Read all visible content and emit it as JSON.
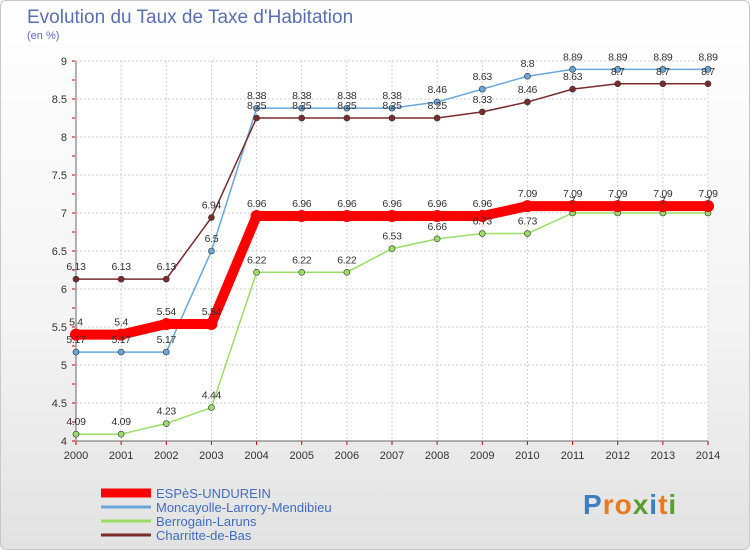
{
  "chart_data": {
    "type": "line",
    "title": "Evolution du Taux de Taxe d'Habitation",
    "subtitle": "(en %)",
    "x": [
      "2000",
      "2001",
      "2002",
      "2003",
      "2004",
      "2005",
      "2006",
      "2007",
      "2008",
      "2009",
      "2010",
      "2011",
      "2012",
      "2013",
      "2014"
    ],
    "ylim": [
      4,
      9
    ],
    "yticks": [
      "4",
      "4.5",
      "5",
      "5.5",
      "6",
      "6.5",
      "7",
      "7.5",
      "8",
      "8.5",
      "9"
    ],
    "grid": true,
    "legend_position": "bottom-left",
    "series": [
      {
        "name": "ESPèS-UNDUREIN",
        "color": "#ff0000",
        "values": [
          5.4,
          5.4,
          5.54,
          5.54,
          6.96,
          6.96,
          6.96,
          6.96,
          6.96,
          6.96,
          7.09,
          7.09,
          7.09,
          7.09,
          7.09
        ],
        "labels": [
          "5.4",
          "5.4",
          "5.54",
          "5.54",
          "6.96",
          "6.96",
          "6.96",
          "6.96",
          "6.96",
          "6.96",
          "7.09",
          "7.09",
          "7.09",
          "7.09",
          "7.09"
        ]
      },
      {
        "name": "Moncayolle-Larrory-Mendibieu",
        "color": "#6aa6d9",
        "values": [
          5.17,
          5.17,
          5.17,
          6.5,
          8.38,
          8.38,
          8.38,
          8.38,
          8.46,
          8.63,
          8.8,
          8.89,
          8.89,
          8.89,
          8.89
        ],
        "labels": [
          "5.17",
          "5.17",
          "5.17",
          "6.5",
          "8.38",
          "8.38",
          "8.38",
          "8.38",
          "8.46",
          "8.63",
          "8.8",
          "8.89",
          "8.89",
          "8.89",
          "8.89"
        ]
      },
      {
        "name": "Berrogain-Laruns",
        "color": "#99dd66",
        "values": [
          4.09,
          4.09,
          4.23,
          4.44,
          6.22,
          6.22,
          6.22,
          6.53,
          6.66,
          6.73,
          6.73,
          7.0,
          7.0,
          7.0,
          7.0
        ],
        "labels": [
          "4.09",
          "4.09",
          "4.23",
          "4.44",
          "6.22",
          "6.22",
          "6.22",
          "6.53",
          "6.66",
          "6.73",
          "6.73",
          "7",
          "7",
          "7",
          "7"
        ]
      },
      {
        "name": "Charritte-de-Bas",
        "color": "#7a2b2b",
        "values": [
          6.13,
          6.13,
          6.13,
          6.94,
          8.25,
          8.25,
          8.25,
          8.25,
          8.25,
          8.33,
          8.46,
          8.63,
          8.7,
          8.7,
          8.7
        ],
        "labels": [
          "6.13",
          "6.13",
          "6.13",
          "6.94",
          "8.25",
          "8.25",
          "8.25",
          "8.25",
          "8.25",
          "8.33",
          "8.46",
          "8.63",
          "8.7",
          "8.7",
          "8.7"
        ]
      }
    ]
  },
  "logo": {
    "text": "Proxiti",
    "letters": [
      "P",
      "r",
      "o",
      "x",
      "i",
      "t",
      "i"
    ],
    "colors": [
      "#3a7fc4",
      "#e87a1f",
      "#e87a1f",
      "#5a9e2c",
      "#3a7fc4",
      "#e87a1f",
      "#5a9e2c"
    ]
  }
}
